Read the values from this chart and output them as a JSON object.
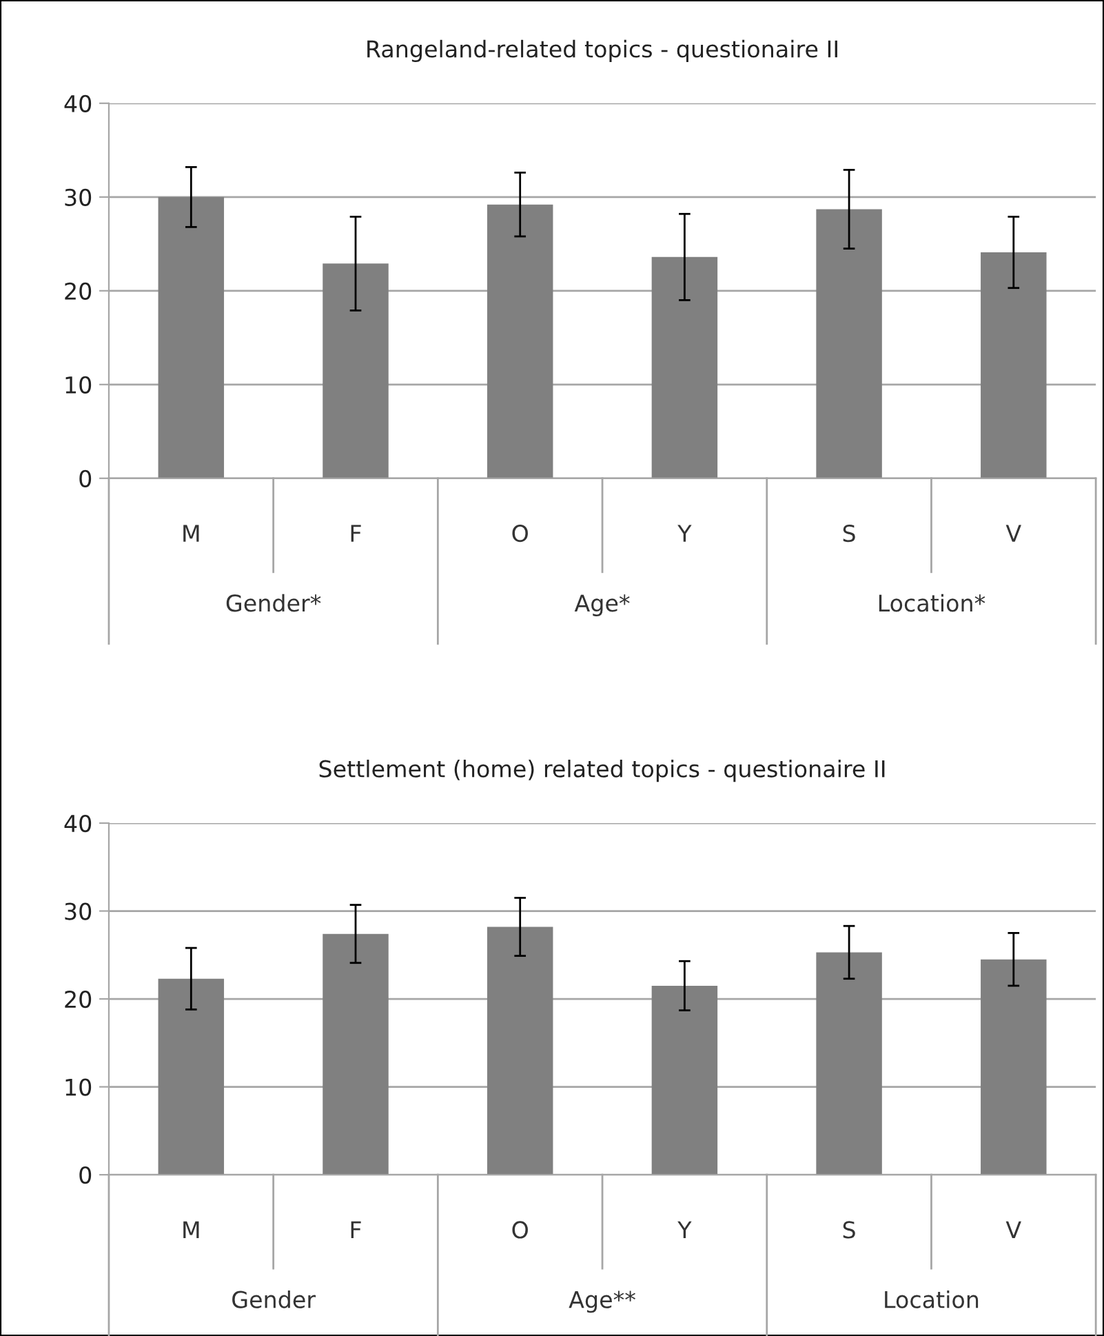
{
  "chart_data": [
    {
      "type": "bar",
      "title": "Rangeland-related topics - questionaire II",
      "categories": [
        "M",
        "F",
        "O",
        "Y",
        "S",
        "V"
      ],
      "values": [
        30.0,
        22.9,
        29.2,
        23.6,
        28.7,
        24.1
      ],
      "errors": [
        3.2,
        5.0,
        3.4,
        4.6,
        4.2,
        3.8
      ],
      "color": "#808080",
      "ylim": [
        0,
        40
      ],
      "yticks": [
        0,
        10,
        20,
        30,
        40
      ],
      "grid": "y",
      "annotations": [
        "Gender*",
        "Age*",
        "Location*"
      ]
    },
    {
      "type": "bar",
      "title": "Settlement (home) related topics - questionaire II",
      "categories": [
        "M",
        "F",
        "O",
        "Y",
        "S",
        "V"
      ],
      "values": [
        22.3,
        27.4,
        28.2,
        21.5,
        25.3,
        24.5
      ],
      "errors": [
        3.5,
        3.3,
        3.3,
        2.8,
        3.0,
        3.0
      ],
      "color": "#808080",
      "ylim": [
        0,
        40
      ],
      "yticks": [
        0,
        10,
        20,
        30,
        40
      ],
      "grid": "y",
      "annotations": [
        "Gender",
        "Age**",
        "Location"
      ]
    }
  ]
}
